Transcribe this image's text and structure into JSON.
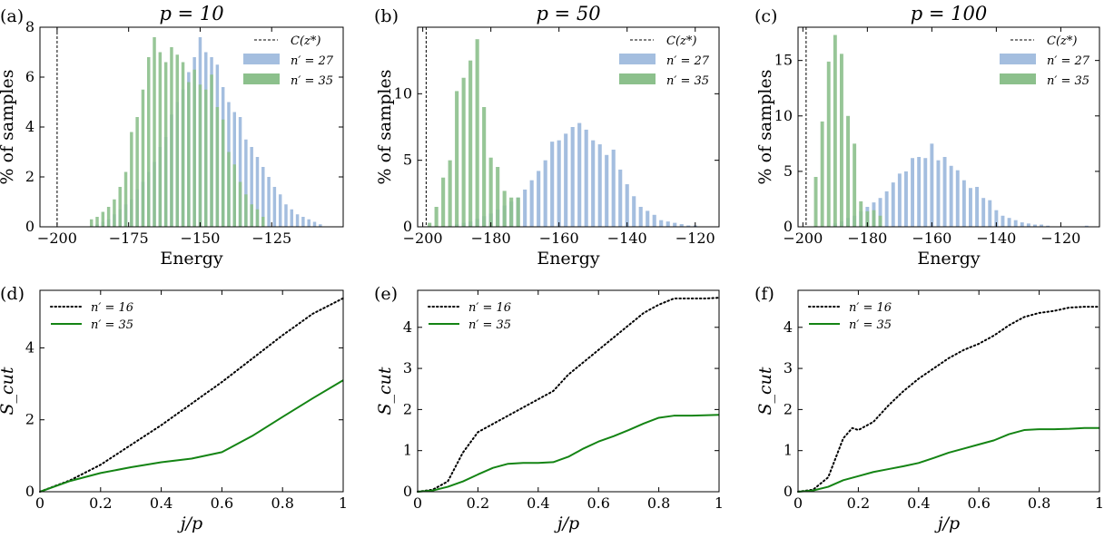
{
  "chart_data": [
    {
      "panel_label": "(a)",
      "type": "bar",
      "title": "p = 10",
      "xlabel": "Energy",
      "ylabel": "% of samples",
      "xlim": [
        -206,
        -100
      ],
      "ylim": [
        0,
        8
      ],
      "xticks": [
        -200,
        -175,
        -150,
        -125
      ],
      "yticks": [
        0,
        2,
        4,
        6,
        8
      ],
      "xtick_labels": [
        "−200",
        "−175",
        "−150",
        "−125"
      ],
      "ytick_labels": [
        "0",
        "2",
        "4",
        "6",
        "8"
      ],
      "vline": {
        "label": "C(z*)",
        "x": -200
      },
      "legend_position": "top-right",
      "series": [
        {
          "name": "n′ = 27",
          "color": "#a4bedf",
          "x": [
            -186,
            -184,
            -182,
            -180,
            -178,
            -176,
            -174,
            -172,
            -170,
            -168,
            -166,
            -164,
            -162,
            -160,
            -158,
            -156,
            -154,
            -152,
            -150,
            -148,
            -146,
            -144,
            -142,
            -140,
            -138,
            -136,
            -134,
            -132,
            -130,
            -128,
            -126,
            -124,
            -122,
            -120,
            -118,
            -116,
            -114,
            -112,
            -110,
            -108
          ],
          "values": [
            0.1,
            0.2,
            0.3,
            0.5,
            0.7,
            0.9,
            1.1,
            1.5,
            1.8,
            2.2,
            2.6,
            3.2,
            3.6,
            4.5,
            5.0,
            5.5,
            6.2,
            6.8,
            7.6,
            7.0,
            6.8,
            6.5,
            5.6,
            5.0,
            4.6,
            4.4,
            3.5,
            3.2,
            2.8,
            2.4,
            2.0,
            1.6,
            1.3,
            0.9,
            0.7,
            0.5,
            0.4,
            0.3,
            0.2,
            0.1
          ]
        },
        {
          "name": "n′ = 35",
          "color": "#8cc08c",
          "x": [
            -188,
            -186,
            -184,
            -182,
            -180,
            -178,
            -176,
            -174,
            -172,
            -170,
            -168,
            -166,
            -164,
            -162,
            -160,
            -158,
            -156,
            -154,
            -152,
            -150,
            -148,
            -146,
            -144,
            -142,
            -140,
            -138,
            -136,
            -134,
            -132,
            -130,
            -128
          ],
          "values": [
            0.3,
            0.4,
            0.6,
            0.8,
            1.1,
            1.6,
            2.2,
            3.8,
            4.4,
            5.5,
            6.8,
            7.6,
            7.0,
            6.6,
            7.2,
            6.9,
            6.6,
            5.8,
            6.3,
            5.7,
            5.5,
            6.1,
            4.8,
            4.3,
            3.0,
            2.5,
            1.8,
            1.3,
            0.9,
            0.7,
            0.4
          ]
        }
      ]
    },
    {
      "panel_label": "(b)",
      "type": "bar",
      "title": "p = 50",
      "xlabel": "Energy",
      "ylabel": "% of samples",
      "xlim": [
        -201.5,
        -113
      ],
      "ylim": [
        0,
        15
      ],
      "xticks": [
        -200,
        -180,
        -160,
        -140,
        -120
      ],
      "yticks": [
        0,
        5,
        10
      ],
      "xtick_labels": [
        "−200",
        "−180",
        "−160",
        "−140",
        "−120"
      ],
      "ytick_labels": [
        "0",
        "5",
        "10"
      ],
      "vline": {
        "label": "C(z*)",
        "x": -199
      },
      "legend_position": "top-right",
      "series": [
        {
          "name": "n′ = 27",
          "color": "#a4bedf",
          "x": [
            -190,
            -188,
            -186,
            -184,
            -182,
            -180,
            -178,
            -176,
            -174,
            -172,
            -170,
            -168,
            -166,
            -164,
            -162,
            -160,
            -158,
            -156,
            -154,
            -152,
            -150,
            -148,
            -146,
            -144,
            -142,
            -140,
            -138,
            -136,
            -134,
            -132,
            -130,
            -128,
            -126,
            -124,
            -122,
            -120
          ],
          "values": [
            0.2,
            0.3,
            0.4,
            0.6,
            0.8,
            1.0,
            1.3,
            1.6,
            1.9,
            2.2,
            2.8,
            3.5,
            4.2,
            5.0,
            6.4,
            6.5,
            7.0,
            7.5,
            7.8,
            7.3,
            6.5,
            6.2,
            5.4,
            5.8,
            4.3,
            3.2,
            2.3,
            1.5,
            1.2,
            0.9,
            0.5,
            0.4,
            0.3,
            0.2,
            0.1,
            0.1
          ]
        },
        {
          "name": "n′ = 35",
          "color": "#8cc08c",
          "x": [
            -198,
            -196,
            -194,
            -192,
            -190,
            -188,
            -186,
            -184,
            -182,
            -180,
            -178,
            -176,
            -174,
            -172
          ],
          "values": [
            0.3,
            1.5,
            3.7,
            5.0,
            10.2,
            11.2,
            12.5,
            14.1,
            9.0,
            5.2,
            4.5,
            2.7,
            2.2,
            2.2
          ]
        }
      ]
    },
    {
      "panel_label": "(c)",
      "type": "bar",
      "title": "p = 100",
      "xlabel": "Energy",
      "ylabel": "% of samples",
      "xlim": [
        -201.5,
        -108
      ],
      "ylim": [
        0,
        18
      ],
      "xticks": [
        -200,
        -180,
        -160,
        -140,
        -120
      ],
      "yticks": [
        0,
        5,
        10,
        15
      ],
      "xtick_labels": [
        "−200",
        "−180",
        "−160",
        "−140",
        "−120"
      ],
      "ytick_labels": [
        "0",
        "5",
        "10",
        "15"
      ],
      "vline": {
        "label": "C(z*)",
        "x": -199
      },
      "legend_position": "top-right",
      "series": [
        {
          "name": "n′ = 27",
          "color": "#a4bedf",
          "x": [
            -190,
            -188,
            -186,
            -184,
            -182,
            -180,
            -178,
            -176,
            -174,
            -172,
            -170,
            -168,
            -166,
            -164,
            -162,
            -160,
            -158,
            -156,
            -154,
            -152,
            -150,
            -148,
            -146,
            -144,
            -142,
            -140,
            -138,
            -136,
            -134,
            -132,
            -130,
            -128,
            -126,
            -124,
            -112
          ],
          "values": [
            0.3,
            0.5,
            0.8,
            1.0,
            1.4,
            1.8,
            2.2,
            2.6,
            3.2,
            4.0,
            4.8,
            5.0,
            6.2,
            6.3,
            6.2,
            7.5,
            6.0,
            6.3,
            5.5,
            5.1,
            4.2,
            3.5,
            3.6,
            2.6,
            2.4,
            1.5,
            1.0,
            0.8,
            0.6,
            0.4,
            0.3,
            0.2,
            0.2,
            0.1,
            0.1
          ]
        },
        {
          "name": "n′ = 35",
          "color": "#8cc08c",
          "x": [
            -196,
            -194,
            -192,
            -190,
            -188,
            -186,
            -184,
            -182,
            -180,
            -178,
            -176
          ],
          "values": [
            4.5,
            9.5,
            14.9,
            17.3,
            15.6,
            10.0,
            7.5,
            2.3,
            1.4,
            1.5,
            1.0
          ]
        }
      ]
    },
    {
      "panel_label": "(d)",
      "type": "line",
      "title": "",
      "xlabel": "j/p",
      "ylabel": "S_cut",
      "xlim": [
        0,
        1
      ],
      "ylim": [
        0,
        5.6
      ],
      "xticks": [
        0,
        0.2,
        0.4,
        0.6,
        0.8,
        1
      ],
      "yticks": [
        0,
        2,
        4
      ],
      "xtick_labels": [
        "0",
        "0.2",
        "0.4",
        "0.6",
        "0.8",
        "1"
      ],
      "ytick_labels": [
        "0",
        "2",
        "4"
      ],
      "legend_position": "top-left",
      "series": [
        {
          "name": "n′ = 16",
          "style": "dotted",
          "color": "#000000",
          "x": [
            0,
            0.1,
            0.2,
            0.3,
            0.4,
            0.5,
            0.6,
            0.7,
            0.8,
            0.9,
            1.0
          ],
          "values": [
            0,
            0.32,
            0.75,
            1.3,
            1.85,
            2.45,
            3.05,
            3.7,
            4.35,
            4.95,
            5.38
          ]
        },
        {
          "name": "n′ = 35",
          "style": "solid",
          "color": "#148414",
          "x": [
            0,
            0.1,
            0.2,
            0.3,
            0.4,
            0.5,
            0.6,
            0.7,
            0.8,
            0.9,
            1.0
          ],
          "values": [
            0,
            0.3,
            0.52,
            0.68,
            0.82,
            0.92,
            1.1,
            1.55,
            2.08,
            2.6,
            3.1
          ]
        }
      ]
    },
    {
      "panel_label": "(e)",
      "type": "line",
      "title": "",
      "xlabel": "j/p",
      "ylabel": "S_cut",
      "xlim": [
        0,
        1
      ],
      "ylim": [
        0,
        4.9
      ],
      "xticks": [
        0,
        0.2,
        0.4,
        0.6,
        0.8,
        1
      ],
      "yticks": [
        0,
        1,
        2,
        3,
        4
      ],
      "xtick_labels": [
        "0",
        "0.2",
        "0.4",
        "0.6",
        "0.8",
        "1"
      ],
      "ytick_labels": [
        "0",
        "1",
        "2",
        "3",
        "4"
      ],
      "legend_position": "top-left",
      "series": [
        {
          "name": "n′ = 16",
          "style": "dotted",
          "color": "#000000",
          "x": [
            0,
            0.05,
            0.1,
            0.15,
            0.2,
            0.25,
            0.3,
            0.35,
            0.4,
            0.45,
            0.5,
            0.55,
            0.6,
            0.65,
            0.7,
            0.75,
            0.8,
            0.85,
            0.9,
            0.95,
            1.0
          ],
          "values": [
            0,
            0.05,
            0.25,
            0.95,
            1.45,
            1.65,
            1.85,
            2.05,
            2.25,
            2.45,
            2.85,
            3.15,
            3.45,
            3.75,
            4.05,
            4.35,
            4.55,
            4.7,
            4.7,
            4.7,
            4.72
          ]
        },
        {
          "name": "n′ = 35",
          "style": "solid",
          "color": "#148414",
          "x": [
            0,
            0.05,
            0.1,
            0.15,
            0.2,
            0.25,
            0.3,
            0.35,
            0.4,
            0.45,
            0.5,
            0.55,
            0.6,
            0.65,
            0.7,
            0.75,
            0.8,
            0.85,
            0.9,
            0.95,
            1.0
          ],
          "values": [
            0,
            0.03,
            0.12,
            0.25,
            0.42,
            0.58,
            0.68,
            0.7,
            0.7,
            0.72,
            0.85,
            1.05,
            1.22,
            1.35,
            1.5,
            1.66,
            1.8,
            1.85,
            1.85,
            1.86,
            1.87
          ]
        }
      ]
    },
    {
      "panel_label": "(f)",
      "type": "line",
      "title": "",
      "xlabel": "j/p",
      "ylabel": "S_cut",
      "xlim": [
        0,
        1
      ],
      "ylim": [
        0,
        4.9
      ],
      "xticks": [
        0,
        0.2,
        0.4,
        0.6,
        0.8,
        1
      ],
      "yticks": [
        0,
        1,
        2,
        3,
        4
      ],
      "xtick_labels": [
        "0",
        "0.2",
        "0.4",
        "0.6",
        "0.8",
        "1"
      ],
      "ytick_labels": [
        "0",
        "1",
        "2",
        "3",
        "4"
      ],
      "legend_position": "top-left",
      "series": [
        {
          "name": "n′ = 16",
          "style": "dotted",
          "color": "#000000",
          "x": [
            0,
            0.05,
            0.1,
            0.15,
            0.18,
            0.2,
            0.25,
            0.3,
            0.35,
            0.4,
            0.45,
            0.5,
            0.55,
            0.6,
            0.65,
            0.7,
            0.75,
            0.8,
            0.85,
            0.9,
            0.95,
            1.0
          ],
          "values": [
            0,
            0.05,
            0.35,
            1.3,
            1.55,
            1.5,
            1.7,
            2.1,
            2.45,
            2.75,
            3.0,
            3.25,
            3.45,
            3.6,
            3.8,
            4.05,
            4.25,
            4.35,
            4.4,
            4.48,
            4.5,
            4.5
          ]
        },
        {
          "name": "n′ = 35",
          "style": "solid",
          "color": "#148414",
          "x": [
            0,
            0.05,
            0.1,
            0.15,
            0.2,
            0.25,
            0.3,
            0.35,
            0.4,
            0.45,
            0.5,
            0.55,
            0.6,
            0.65,
            0.7,
            0.75,
            0.8,
            0.85,
            0.9,
            0.95,
            1.0
          ],
          "values": [
            0,
            0.03,
            0.12,
            0.28,
            0.38,
            0.48,
            0.55,
            0.62,
            0.7,
            0.82,
            0.95,
            1.05,
            1.15,
            1.25,
            1.4,
            1.5,
            1.52,
            1.52,
            1.53,
            1.55,
            1.55
          ]
        }
      ]
    }
  ]
}
